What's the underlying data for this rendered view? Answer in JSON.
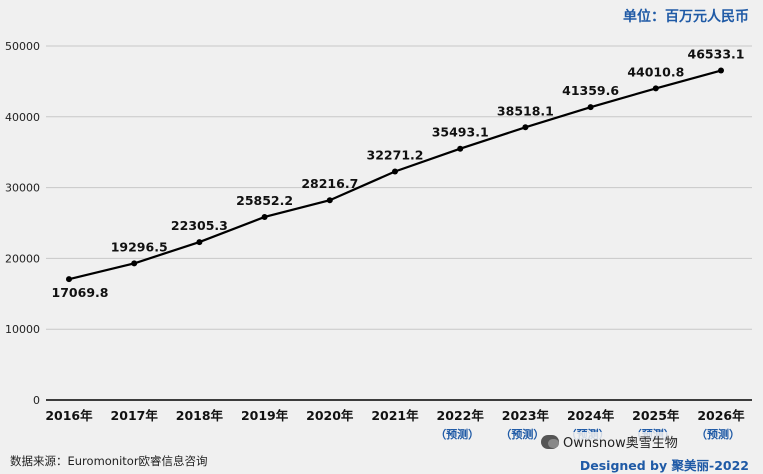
{
  "header": {
    "unit_label": "单位：百万元人民币"
  },
  "footer": {
    "source": "数据来源：Euromonitor欧睿信息咨询",
    "designer": "Designed by 聚美丽-2022",
    "wechat_watermark": "Ownsnow奥雪生物",
    "wechat_icon": "wechat-icon"
  },
  "colors": {
    "line": "#000000",
    "grid": "#c8c8c8",
    "forecast_label": "#1f5aa6",
    "accent": "#1f5aa6"
  },
  "chart_data": {
    "type": "line",
    "categories": [
      "2016年",
      "2017年",
      "2018年",
      "2019年",
      "2020年",
      "2021年",
      "2022年",
      "2023年",
      "2024年",
      "2025年",
      "2026年"
    ],
    "forecast_labels": [
      "",
      "",
      "",
      "",
      "",
      "",
      "（预测）",
      "（预测）",
      "（预测）",
      "（预测）",
      "（预测）"
    ],
    "values": [
      17069.8,
      19296.5,
      22305.3,
      25852.2,
      28216.7,
      32271.2,
      35493.1,
      38518.1,
      41359.6,
      44010.8,
      46533.1
    ],
    "value_labels": [
      "17069.8",
      "19296.5",
      "22305.3",
      "25852.2",
      "28216.7",
      "32271.2",
      "35493.1",
      "38518.1",
      "41359.6",
      "44010.8",
      "46533.1"
    ],
    "yticks": [
      "0",
      "10000",
      "20000",
      "30000",
      "40000",
      "50000"
    ],
    "ylim": [
      0,
      50000
    ],
    "grid": true,
    "legend": false
  }
}
